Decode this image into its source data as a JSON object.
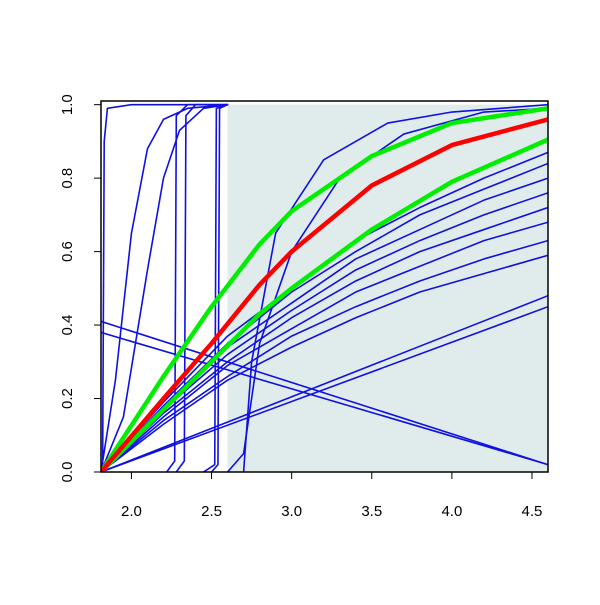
{
  "chart_data": {
    "type": "line",
    "xlim": [
      1.81,
      4.6
    ],
    "ylim": [
      0,
      1.01
    ],
    "xticks": [
      {
        "value": 2,
        "label": "2.0"
      },
      2.5,
      {
        "value": 3,
        "label": "3.0"
      },
      3.5,
      {
        "value": 4,
        "label": "4.0"
      },
      4.5
    ],
    "yticks": [
      {
        "value": 0,
        "label": "0.0"
      },
      0.2,
      0.4,
      0.6,
      0.8,
      {
        "value": 1,
        "label": "1.0"
      }
    ],
    "shaded_region": {
      "x": [
        2.6,
        4.6
      ],
      "y": [
        0,
        1
      ],
      "color": "#e0ecec"
    },
    "series": [
      {
        "color": "#1010e0",
        "linewidth": 1.6,
        "x": [
          1.81,
          2.2,
          2.6,
          3.0,
          3.4,
          3.8,
          4.2,
          4.6
        ],
        "values": [
          0,
          0.19,
          0.37,
          0.5,
          0.63,
          0.72,
          0.8,
          0.87
        ]
      },
      {
        "color": "#1010e0",
        "linewidth": 1.6,
        "x": [
          1.81,
          2.2,
          2.6,
          3.0,
          3.4,
          3.8,
          4.2,
          4.6
        ],
        "values": [
          0,
          0.18,
          0.35,
          0.49,
          0.6,
          0.7,
          0.77,
          0.84
        ]
      },
      {
        "color": "#1010e0",
        "linewidth": 1.6,
        "x": [
          1.81,
          2.2,
          2.6,
          3.0,
          3.4,
          3.8,
          4.2,
          4.6
        ],
        "values": [
          0,
          0.18,
          0.34,
          0.46,
          0.58,
          0.66,
          0.74,
          0.8
        ]
      },
      {
        "color": "#1010e0",
        "linewidth": 1.6,
        "x": [
          1.81,
          2.2,
          2.6,
          3.0,
          3.4,
          3.8,
          4.2,
          4.6
        ],
        "values": [
          0,
          0.17,
          0.32,
          0.44,
          0.55,
          0.63,
          0.7,
          0.76
        ]
      },
      {
        "color": "#1010e0",
        "linewidth": 1.6,
        "x": [
          1.81,
          2.2,
          2.6,
          3.0,
          3.4,
          3.8,
          4.2,
          4.6
        ],
        "values": [
          0,
          0.16,
          0.3,
          0.42,
          0.52,
          0.6,
          0.66,
          0.72
        ]
      },
      {
        "color": "#1010e0",
        "linewidth": 1.6,
        "x": [
          1.81,
          2.2,
          2.6,
          3.0,
          3.4,
          3.8,
          4.2,
          4.6
        ],
        "values": [
          0,
          0.15,
          0.29,
          0.39,
          0.49,
          0.56,
          0.63,
          0.68
        ]
      },
      {
        "color": "#1010e0",
        "linewidth": 1.6,
        "x": [
          1.81,
          2.2,
          2.6,
          3.0,
          3.4,
          3.8,
          4.2,
          4.6
        ],
        "values": [
          0,
          0.14,
          0.26,
          0.37,
          0.45,
          0.52,
          0.58,
          0.63
        ]
      },
      {
        "color": "#1010e0",
        "linewidth": 1.6,
        "x": [
          1.81,
          2.2,
          2.6,
          3.0,
          3.4,
          3.8,
          4.2,
          4.6
        ],
        "values": [
          0,
          0.13,
          0.25,
          0.34,
          0.42,
          0.49,
          0.54,
          0.59
        ]
      },
      {
        "color": "#1010e0",
        "linewidth": 1.6,
        "x": [
          2.6,
          2.7,
          2.8,
          3.0,
          3.3,
          3.7,
          4.2,
          4.6
        ],
        "values": [
          0,
          0.05,
          0.35,
          0.6,
          0.8,
          0.92,
          0.98,
          0.99
        ]
      },
      {
        "color": "#1010e0",
        "linewidth": 1.6,
        "x": [
          2.7,
          2.75,
          2.9,
          3.2,
          3.6,
          4.0,
          4.6
        ],
        "values": [
          0,
          0.3,
          0.65,
          0.85,
          0.95,
          0.98,
          1
        ]
      },
      {
        "color": "#1010e0",
        "linewidth": 1.6,
        "x": [
          1.81,
          1.9,
          2.0,
          2.1,
          2.2,
          2.35,
          2.6
        ],
        "values": [
          0,
          0.25,
          0.65,
          0.88,
          0.96,
          0.99,
          1
        ]
      },
      {
        "color": "#1010e0",
        "linewidth": 1.6,
        "x": [
          1.81,
          1.95,
          2.1,
          2.2,
          2.3,
          2.45,
          2.6
        ],
        "values": [
          0,
          0.15,
          0.55,
          0.8,
          0.93,
          0.99,
          1
        ]
      },
      {
        "color": "#1010e0",
        "linewidth": 1.6,
        "x": [
          1.82,
          1.83,
          1.85,
          2.0,
          2.6
        ],
        "values": [
          0,
          0.9,
          0.99,
          1,
          1
        ]
      },
      {
        "color": "#1010e0",
        "linewidth": 1.6,
        "x": [
          2.22,
          2.27,
          2.28,
          2.35,
          2.6
        ],
        "values": [
          0,
          0.03,
          0.97,
          1,
          1
        ]
      },
      {
        "color": "#1010e0",
        "linewidth": 1.6,
        "x": [
          2.28,
          2.33,
          2.34,
          2.4,
          2.6
        ],
        "values": [
          0,
          0.03,
          0.97,
          1,
          1
        ]
      },
      {
        "color": "#1010e0",
        "linewidth": 1.6,
        "x": [
          2.45,
          2.52,
          2.53,
          2.6
        ],
        "values": [
          0,
          0.02,
          0.99,
          1
        ]
      },
      {
        "color": "#1010e0",
        "linewidth": 1.6,
        "x": [
          2.5,
          2.54,
          2.55,
          2.6
        ],
        "values": [
          0,
          0.02,
          0.99,
          1
        ]
      },
      {
        "color": "#1010e0",
        "linewidth": 1.6,
        "x": [
          1.81,
          4.6
        ],
        "values": [
          0.41,
          0.02
        ]
      },
      {
        "color": "#1010e0",
        "linewidth": 1.6,
        "x": [
          1.81,
          4.6
        ],
        "values": [
          0.38,
          0.02
        ]
      },
      {
        "color": "#1010e0",
        "linewidth": 1.6,
        "x": [
          1.81,
          4.6
        ],
        "values": [
          0,
          0.45
        ]
      },
      {
        "color": "#1010e0",
        "linewidth": 1.6,
        "x": [
          1.81,
          4.6
        ],
        "values": [
          0,
          0.48
        ]
      },
      {
        "color": "#00ee00",
        "linewidth": 4.5,
        "x": [
          1.81,
          2.2,
          2.5,
          2.8,
          3.0,
          3.5,
          4.0,
          4.6
        ],
        "values": [
          0,
          0.26,
          0.45,
          0.62,
          0.71,
          0.86,
          0.95,
          0.99
        ]
      },
      {
        "color": "#00ee00",
        "linewidth": 4.5,
        "x": [
          1.81,
          2.2,
          2.5,
          2.8,
          3.0,
          3.5,
          4.0,
          4.6
        ],
        "values": [
          0,
          0.17,
          0.3,
          0.43,
          0.5,
          0.66,
          0.79,
          0.905
        ]
      },
      {
        "color": "#ff0000",
        "linewidth": 4.5,
        "x": [
          1.81,
          2.2,
          2.5,
          2.8,
          3.0,
          3.5,
          4.0,
          4.6
        ],
        "values": [
          0,
          0.2,
          0.35,
          0.51,
          0.6,
          0.78,
          0.89,
          0.96
        ]
      }
    ]
  }
}
